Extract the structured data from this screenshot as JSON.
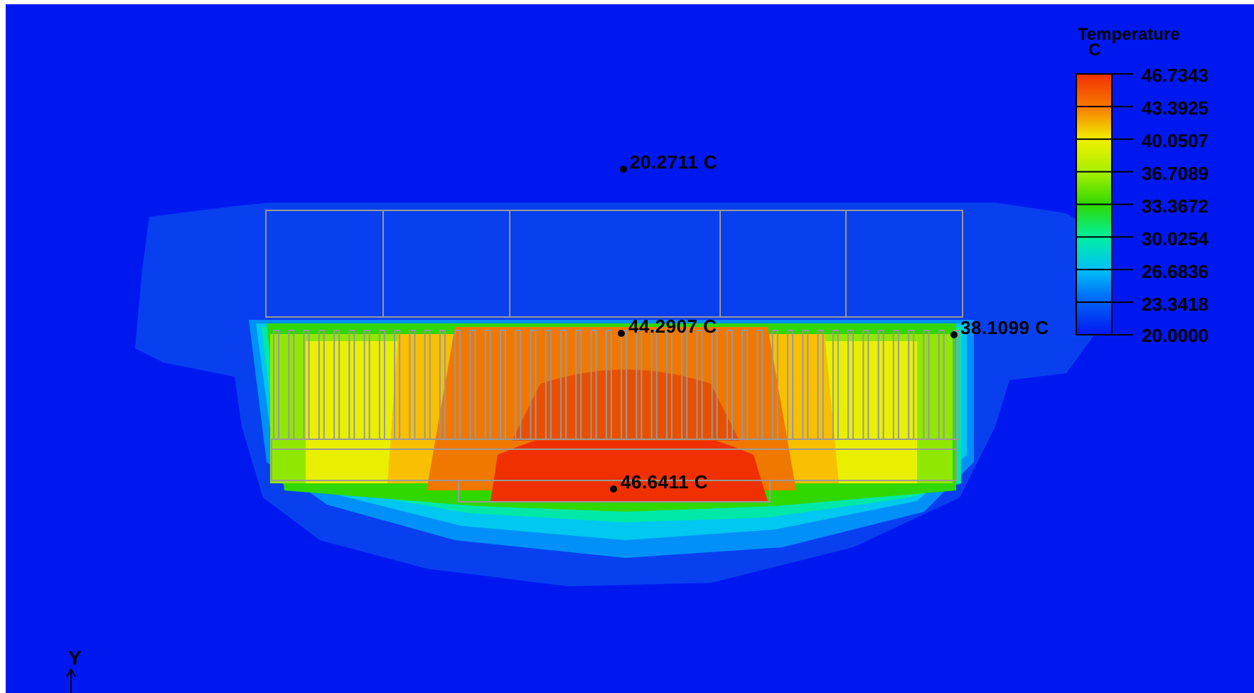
{
  "legend": {
    "title": "Temperature",
    "unit": "C",
    "values": [
      "46.7343",
      "43.3925",
      "40.0507",
      "36.7089",
      "33.3672",
      "30.0254",
      "26.6836",
      "23.3418",
      "20.0000"
    ],
    "colors": [
      "#f03000",
      "#f87800",
      "#f0f000",
      "#a8f000",
      "#30d800",
      "#00f0a0",
      "#00c0f8",
      "#0060f8",
      "#0018f0"
    ]
  },
  "probes": [
    {
      "label": "20.2711 C",
      "value": 20.2711
    },
    {
      "label": "44.2907 C",
      "value": 44.2907
    },
    {
      "label": "38.1099 C",
      "value": 38.1099
    },
    {
      "label": "46.6411 C",
      "value": 46.6411
    }
  ],
  "axis": {
    "label": "Y"
  },
  "colors": {
    "background": "#0018f0",
    "outline": "#999999"
  }
}
